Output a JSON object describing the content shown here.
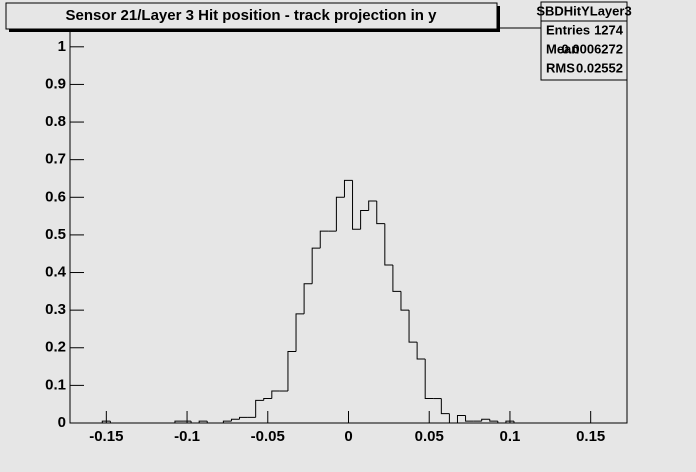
{
  "chart_data": {
    "type": "histogram",
    "title": "Sensor 21/Layer 3 Hit position - track projection in y",
    "stats": {
      "name": "SBDHitYLayer3",
      "rows": [
        [
          "Entries",
          "1274"
        ],
        [
          "Mean",
          "0.0006272"
        ],
        [
          "RMS",
          "0.02552"
        ]
      ]
    },
    "bins": [
      -0.1725,
      -0.1675,
      -0.1625,
      -0.1575,
      -0.1525,
      -0.1475,
      -0.1425,
      -0.1375,
      -0.1325,
      -0.1275,
      -0.1225,
      -0.1175,
      -0.1125,
      -0.1075,
      -0.1025,
      -0.0975,
      -0.0925,
      -0.0875,
      -0.0825,
      -0.0775,
      -0.0725,
      -0.0675,
      -0.0625,
      -0.0575,
      -0.0525,
      -0.0475,
      -0.0425,
      -0.0375,
      -0.0325,
      -0.0275,
      -0.0225,
      -0.0175,
      -0.0125,
      -0.0075,
      -0.0025,
      0.0025,
      0.0075,
      0.0125,
      0.0175,
      0.0225,
      0.0275,
      0.0325,
      0.0375,
      0.0425,
      0.0475,
      0.0525,
      0.0575,
      0.0625,
      0.0675,
      0.0725,
      0.0775,
      0.0825,
      0.0875,
      0.0925,
      0.0975,
      0.1025,
      0.1075,
      0.1125,
      0.1175,
      0.1225,
      0.1275,
      0.1325,
      0.1375,
      0.1425,
      0.1475,
      0.1525,
      0.1575,
      0.1625,
      0.1675,
      0.1725
    ],
    "values": [
      0,
      0,
      0,
      0,
      0.005,
      0,
      0,
      0,
      0,
      0,
      0,
      0,
      0,
      0.005,
      0.005,
      0,
      0.005,
      0,
      0,
      0.005,
      0.01,
      0.015,
      0.015,
      0.06,
      0.065,
      0.085,
      0.085,
      0.19,
      0.29,
      0.37,
      0.465,
      0.51,
      0.51,
      0.6,
      0.645,
      0.515,
      0.565,
      0.59,
      0.53,
      0.42,
      0.35,
      0.3,
      0.215,
      0.17,
      0.065,
      0.065,
      0.025,
      0,
      0.02,
      0.005,
      0.005,
      0.01,
      0.005,
      0,
      0.005,
      0,
      0,
      0,
      0,
      0,
      0,
      0,
      0,
      0,
      0,
      0,
      0,
      0,
      0
    ],
    "color": "#000000",
    "xlim": [
      -0.1725,
      0.1725
    ],
    "xticks": [
      -0.15,
      -0.1,
      -0.05,
      0,
      0.05,
      0.1,
      0.15
    ],
    "ylim": [
      0,
      1.05
    ],
    "yticks": [
      0,
      0.1,
      0.2,
      0.3,
      0.4,
      0.5,
      0.6,
      0.7,
      0.8,
      0.9,
      1
    ]
  }
}
